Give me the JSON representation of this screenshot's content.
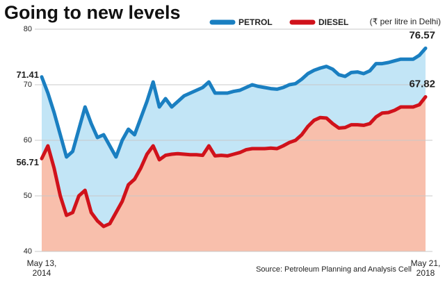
{
  "chart_data": {
    "type": "line",
    "title": "Going to new levels",
    "subtitle": "(₹ per litre in Delhi)",
    "source": "Source: Petroleum Planning and Analysis Cell",
    "categories": [
      "May 13, 2014",
      null,
      null,
      null,
      null,
      null,
      null,
      null,
      null,
      null,
      null,
      null,
      null,
      null,
      null,
      null,
      null,
      null,
      null,
      null,
      null,
      null,
      null,
      null,
      null,
      null,
      null,
      null,
      null,
      null,
      null,
      null,
      null,
      null,
      null,
      null,
      null,
      null,
      null,
      null,
      null,
      null,
      null,
      null,
      null,
      null,
      null,
      null,
      null,
      null,
      null,
      null,
      null,
      null,
      null,
      null,
      null,
      null,
      null,
      null,
      null,
      null,
      "May 21, 2018"
    ],
    "series": [
      {
        "name": "PETROL",
        "color": "#1a7fc1",
        "fill": "#c2e5f6",
        "values": [
          71.41,
          68.5,
          65,
          61,
          57,
          58,
          62,
          66,
          63,
          60.5,
          61,
          59,
          57,
          60,
          62,
          61,
          64,
          67,
          70.5,
          66,
          67.5,
          66,
          67,
          68,
          68.5,
          69,
          69.5,
          70.5,
          68.5,
          68.5,
          68.5,
          68.8,
          69,
          69.5,
          70,
          69.7,
          69.5,
          69.3,
          69.2,
          69.5,
          70,
          70.2,
          71,
          72,
          72.6,
          73,
          73.3,
          72.8,
          71.8,
          71.5,
          72.2,
          72.3,
          72,
          72.5,
          73.8,
          73.8,
          74,
          74.3,
          74.6,
          74.6,
          74.6,
          75.3,
          76.57
        ]
      },
      {
        "name": "DIESEL",
        "color": "#d0121b",
        "fill": "#f8bfac",
        "values": [
          56.71,
          59,
          55,
          50,
          46.5,
          47,
          50,
          51,
          47,
          45.5,
          44.5,
          45,
          47,
          49,
          52,
          53,
          55,
          57.5,
          59,
          56.5,
          57.3,
          57.5,
          57.6,
          57.5,
          57.4,
          57.4,
          57.3,
          59,
          57.2,
          57.3,
          57.2,
          57.5,
          57.8,
          58.3,
          58.5,
          58.5,
          58.5,
          58.6,
          58.5,
          59,
          59.6,
          60,
          61,
          62.5,
          63.6,
          64.1,
          64,
          63,
          62.2,
          62.3,
          62.8,
          62.8,
          62.7,
          63,
          64.2,
          64.9,
          65,
          65.4,
          66,
          66,
          66,
          66.4,
          67.82
        ]
      }
    ],
    "ylim": [
      40,
      80
    ],
    "yticks": [
      40,
      50,
      60,
      70,
      80
    ],
    "grid": true
  }
}
